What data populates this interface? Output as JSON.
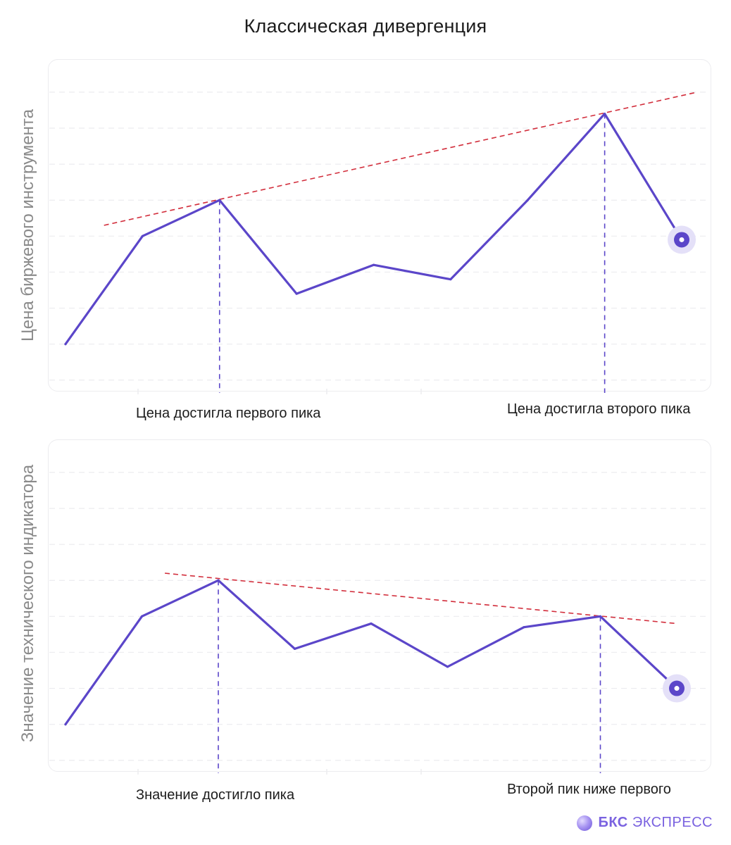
{
  "chart_data": [
    {
      "type": "line",
      "ylabel": "Цена биржевого инструмента",
      "x": [
        0,
        1,
        2,
        3,
        4,
        5,
        6,
        7,
        8
      ],
      "values": [
        1.0,
        4.0,
        5.0,
        2.4,
        3.2,
        2.8,
        5.0,
        7.4,
        3.9
      ],
      "ylim": [
        -0.2,
        8.8
      ],
      "trendline": {
        "from": [
          0.5,
          4.3
        ],
        "to": [
          8.2,
          8.0
        ],
        "color": "#d22e3c"
      },
      "peaks": [
        2,
        7
      ],
      "last_point_marker": true,
      "annotations": [
        "Цена достигла первого пика",
        "Цена достигла второго пика"
      ]
    },
    {
      "type": "line",
      "ylabel": "Значение технического индикатора",
      "x": [
        0,
        1,
        2,
        3,
        4,
        5,
        6,
        7,
        8
      ],
      "values": [
        1.0,
        4.0,
        5.0,
        3.1,
        3.8,
        2.6,
        3.7,
        4.0,
        2.0
      ],
      "ylim": [
        -0.2,
        8.8
      ],
      "trendline": {
        "from": [
          1.3,
          5.2
        ],
        "to": [
          8.0,
          3.8
        ],
        "color": "#d22e3c"
      },
      "peaks": [
        2,
        7
      ],
      "last_point_marker": true,
      "annotations": [
        "Значение достигло пика",
        "Второй пик ниже первого"
      ]
    }
  ],
  "title": "Классическая дивергенция",
  "colors": {
    "line": "#5b46c9",
    "trend": "#d22e3c",
    "grid": "#ececef",
    "ylabel": "#8a8a8a"
  },
  "brand": {
    "short": "БКС",
    "name": "ЭКСПРЕСС"
  }
}
